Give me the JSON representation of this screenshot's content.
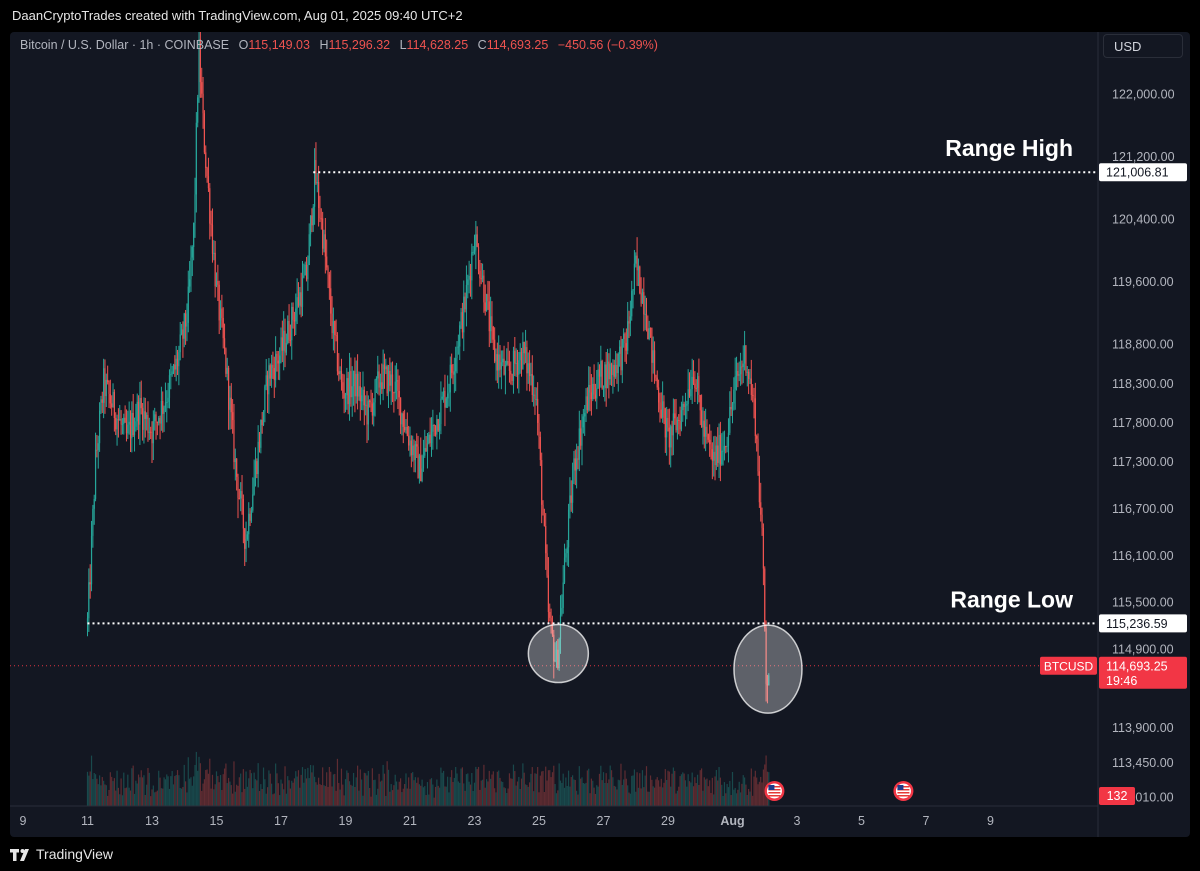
{
  "header": {
    "credit": "DaanCryptoTrades created with TradingView.com, Aug 01, 2025 09:40 UTC+2",
    "symbol": "Bitcoin / U.S. Dollar · 1h · COINBASE",
    "o_label": "O",
    "o_value": "115,149.03",
    "h_label": "H",
    "h_value": "115,296.32",
    "l_label": "L",
    "l_value": "114,628.25",
    "c_label": "C",
    "c_value": "114,693.25",
    "change": "−450.56 (−0.39%)"
  },
  "currency_button": "USD",
  "footer": {
    "brand": "TradingView"
  },
  "colors": {
    "up": "#26a69a",
    "down": "#ef5350",
    "background": "#131722",
    "label_red": "#f23645"
  },
  "chart_data": {
    "type": "candlestick",
    "interval": "1h",
    "x_ticks": [
      "9",
      "11",
      "13",
      "15",
      "17",
      "19",
      "21",
      "23",
      "25",
      "27",
      "29",
      "Aug",
      "3",
      "5",
      "7",
      "9"
    ],
    "y_ticks": [
      "122,000.00",
      "121,200.00",
      "120,400.00",
      "119,600.00",
      "118,800.00",
      "118,300.00",
      "117,800.00",
      "117,300.00",
      "116,700.00",
      "116,100.00",
      "115,500.00",
      "114,900.00",
      "113,900.00",
      "113,450.00",
      "113,010.00"
    ],
    "ylim": [
      112900,
      122800
    ],
    "grid": false,
    "price_path": [
      [
        11.0,
        115236
      ],
      [
        11.1,
        116000
      ],
      [
        11.25,
        117300
      ],
      [
        11.5,
        118300
      ],
      [
        11.8,
        118000
      ],
      [
        12.2,
        117600
      ],
      [
        12.6,
        118000
      ],
      [
        13.0,
        117700
      ],
      [
        13.4,
        118100
      ],
      [
        13.8,
        118600
      ],
      [
        14.1,
        119200
      ],
      [
        14.3,
        120300
      ],
      [
        14.45,
        122600
      ],
      [
        14.6,
        121500
      ],
      [
        14.8,
        120500
      ],
      [
        15.0,
        119500
      ],
      [
        15.3,
        118500
      ],
      [
        15.6,
        117200
      ],
      [
        15.9,
        116300
      ],
      [
        16.2,
        117200
      ],
      [
        16.6,
        118400
      ],
      [
        17.0,
        118700
      ],
      [
        17.4,
        119200
      ],
      [
        17.8,
        119700
      ],
      [
        18.05,
        121006
      ],
      [
        18.3,
        120200
      ],
      [
        18.6,
        119000
      ],
      [
        18.9,
        118200
      ],
      [
        19.3,
        118300
      ],
      [
        19.7,
        117900
      ],
      [
        20.1,
        118400
      ],
      [
        20.5,
        118300
      ],
      [
        20.9,
        117700
      ],
      [
        21.3,
        117200
      ],
      [
        21.7,
        117700
      ],
      [
        22.2,
        118300
      ],
      [
        22.7,
        119300
      ],
      [
        23.0,
        120200
      ],
      [
        23.3,
        119500
      ],
      [
        23.6,
        118700
      ],
      [
        24.0,
        118400
      ],
      [
        24.5,
        118700
      ],
      [
        24.9,
        118200
      ],
      [
        25.1,
        116800
      ],
      [
        25.3,
        115300
      ],
      [
        25.55,
        114700
      ],
      [
        25.8,
        116000
      ],
      [
        26.1,
        117300
      ],
      [
        26.5,
        118100
      ],
      [
        26.9,
        118400
      ],
      [
        27.3,
        118500
      ],
      [
        27.7,
        118800
      ],
      [
        28.0,
        119800
      ],
      [
        28.3,
        119300
      ],
      [
        28.6,
        118400
      ],
      [
        29.0,
        117600
      ],
      [
        29.4,
        117900
      ],
      [
        29.8,
        118500
      ],
      [
        30.1,
        117700
      ],
      [
        30.4,
        117300
      ],
      [
        30.8,
        117600
      ],
      [
        31.1,
        118300
      ],
      [
        31.4,
        118700
      ],
      [
        31.7,
        117900
      ],
      [
        31.85,
        116800
      ],
      [
        31.95,
        116000
      ],
      [
        32.0,
        115200
      ],
      [
        32.05,
        114500
      ],
      [
        32.15,
        114693
      ]
    ],
    "volume_level": 0.35,
    "annotations": [
      {
        "text": "Range High",
        "price": 121006.81,
        "label": "121,006.81",
        "from_x": 18.0
      },
      {
        "text": "Range Low",
        "price": 115236.59,
        "label": "115,236.59",
        "from_x": 11.0
      }
    ],
    "highlights": [
      {
        "x": 25.6,
        "price": 114850
      },
      {
        "x": 32.1,
        "price": 114650
      }
    ],
    "last_price": {
      "symbol": "BTCUSD",
      "value": "114,693.25",
      "price": 114693.25,
      "countdown": "19:46"
    },
    "volume_label": "132",
    "event_flags": [
      {
        "x": 32.3
      },
      {
        "x": 36.3
      }
    ]
  }
}
